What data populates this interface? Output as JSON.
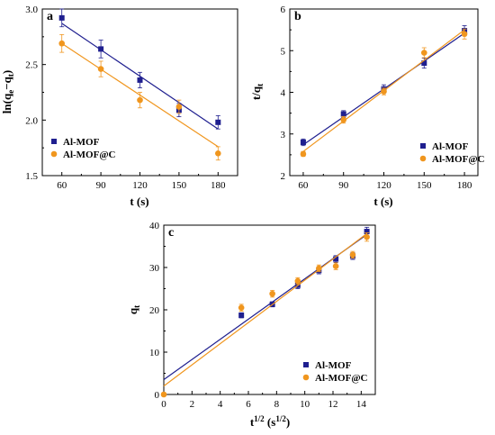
{
  "colors": {
    "Al-MOF": "#1f1f8f",
    "Al-MOF@C": "#f0961e"
  },
  "chart_data": [
    {
      "id": "a",
      "type": "scatter",
      "panel_label": "a",
      "xlabel": "t (s)",
      "ylabel": "ln(qe−qt)",
      "xlim": [
        45,
        195
      ],
      "ylim": [
        1.5,
        3.0
      ],
      "xticks": [
        60,
        90,
        120,
        150,
        180
      ],
      "yticks": [
        1.5,
        2.0,
        2.5,
        3.0
      ],
      "legend_position": "bottom-left",
      "series": [
        {
          "name": "Al-MOF",
          "marker": "square",
          "x": [
            60,
            90,
            120,
            150,
            180
          ],
          "y": [
            2.92,
            2.64,
            2.36,
            2.09,
            1.98
          ],
          "err": [
            0.08,
            0.08,
            0.07,
            0.06,
            0.06
          ],
          "fit": {
            "x": [
              60,
              180
            ],
            "y": [
              2.87,
              1.92
            ]
          }
        },
        {
          "name": "Al-MOF@C",
          "marker": "circle",
          "x": [
            60,
            90,
            120,
            150,
            180
          ],
          "y": [
            2.69,
            2.46,
            2.18,
            2.12,
            1.7
          ],
          "err": [
            0.08,
            0.07,
            0.07,
            0.06,
            0.06
          ],
          "fit": {
            "x": [
              60,
              180
            ],
            "y": [
              2.69,
              1.76
            ]
          }
        }
      ]
    },
    {
      "id": "b",
      "type": "scatter",
      "panel_label": "b",
      "xlabel": "t (s)",
      "ylabel": "t/qt",
      "xlim": [
        50,
        190
      ],
      "ylim": [
        2,
        6
      ],
      "xticks": [
        60,
        90,
        120,
        150,
        180
      ],
      "yticks": [
        2,
        3,
        4,
        5,
        6
      ],
      "legend_position": "bottom-right",
      "series": [
        {
          "name": "Al-MOF",
          "marker": "square",
          "x": [
            60,
            90,
            120,
            150,
            180
          ],
          "y": [
            2.8,
            3.48,
            4.08,
            4.7,
            5.48
          ],
          "err": [
            0.08,
            0.08,
            0.1,
            0.12,
            0.12
          ],
          "fit": {
            "x": [
              60,
              180
            ],
            "y": [
              2.74,
              5.42
            ]
          }
        },
        {
          "name": "Al-MOF@C",
          "marker": "circle",
          "x": [
            60,
            90,
            120,
            150,
            180
          ],
          "y": [
            2.52,
            3.34,
            4.02,
            4.95,
            5.4
          ],
          "err": [
            0.06,
            0.08,
            0.08,
            0.12,
            0.12
          ],
          "fit": {
            "x": [
              60,
              180
            ],
            "y": [
              2.58,
              5.5
            ]
          }
        }
      ]
    },
    {
      "id": "c",
      "type": "scatter",
      "panel_label": "c",
      "xlabel": "t1/2 (s1/2)",
      "ylabel": "qt",
      "xlim": [
        0,
        15
      ],
      "ylim": [
        0,
        40
      ],
      "xticks": [
        0,
        2,
        4,
        6,
        8,
        10,
        12,
        14
      ],
      "yticks": [
        0,
        10,
        20,
        30,
        40
      ],
      "legend_position": "bottom-right",
      "series": [
        {
          "name": "Al-MOF",
          "marker": "square",
          "x": [
            5.5,
            7.7,
            9.5,
            11.0,
            12.2,
            13.4,
            14.4
          ],
          "y": [
            18.7,
            21.3,
            25.8,
            29.3,
            32.0,
            32.7,
            38.5
          ],
          "err": [
            0.6,
            0.6,
            0.8,
            0.8,
            0.8,
            0.8,
            1.0
          ],
          "fit": {
            "x": [
              0,
              14.4
            ],
            "y": [
              3.5,
              37.8
            ]
          }
        },
        {
          "name": "Al-MOF@C",
          "marker": "circle",
          "x": [
            0,
            5.5,
            7.7,
            9.5,
            11.0,
            12.2,
            13.4,
            14.4
          ],
          "y": [
            0,
            20.5,
            23.8,
            26.8,
            29.8,
            30.3,
            33.0,
            37.2
          ],
          "err": [
            0,
            0.8,
            0.8,
            0.8,
            0.8,
            0.8,
            0.8,
            1.0
          ],
          "fit": {
            "x": [
              0,
              14.4
            ],
            "y": [
              2.0,
              38.0
            ]
          }
        }
      ]
    }
  ]
}
